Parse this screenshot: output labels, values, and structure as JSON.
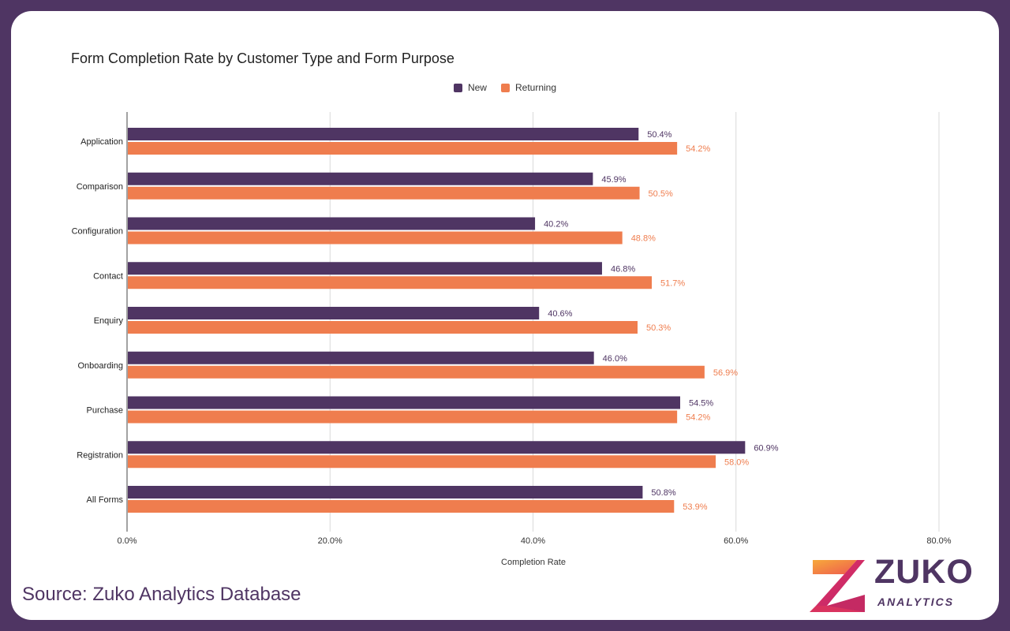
{
  "chart_data": {
    "type": "bar",
    "orientation": "horizontal",
    "title": "Form Completion Rate by Customer Type and Form Purpose",
    "xlabel": "Completion Rate",
    "ylabel": "",
    "xlim": [
      0,
      80
    ],
    "x_ticks": [
      "0.0%",
      "20.0%",
      "40.0%",
      "60.0%",
      "80.0%"
    ],
    "x_tick_values": [
      0,
      20,
      40,
      60,
      80
    ],
    "categories": [
      "Application",
      "Comparison",
      "Configuration",
      "Contact",
      "Enquiry",
      "Onboarding",
      "Purchase",
      "Registration",
      "All Forms"
    ],
    "series": [
      {
        "name": "New",
        "color": "#4f3563",
        "values": [
          50.4,
          45.9,
          40.2,
          46.8,
          40.6,
          46.0,
          54.5,
          60.9,
          50.8
        ],
        "labels": [
          "50.4%",
          "45.9%",
          "40.2%",
          "46.8%",
          "40.6%",
          "46.0%",
          "54.5%",
          "60.9%",
          "50.8%"
        ]
      },
      {
        "name": "Returning",
        "color": "#ef7d4e",
        "values": [
          54.2,
          50.5,
          48.8,
          51.7,
          50.3,
          56.9,
          54.2,
          58.0,
          53.9
        ],
        "labels": [
          "54.2%",
          "50.5%",
          "48.8%",
          "51.7%",
          "50.3%",
          "56.9%",
          "54.2%",
          "58.0%",
          "53.9%"
        ]
      }
    ],
    "grid": true,
    "legend_position": "top-center"
  },
  "source": "Source: Zuko Analytics Database",
  "logo": {
    "word": "ZUKO",
    "sub": "ANALYTICS"
  }
}
